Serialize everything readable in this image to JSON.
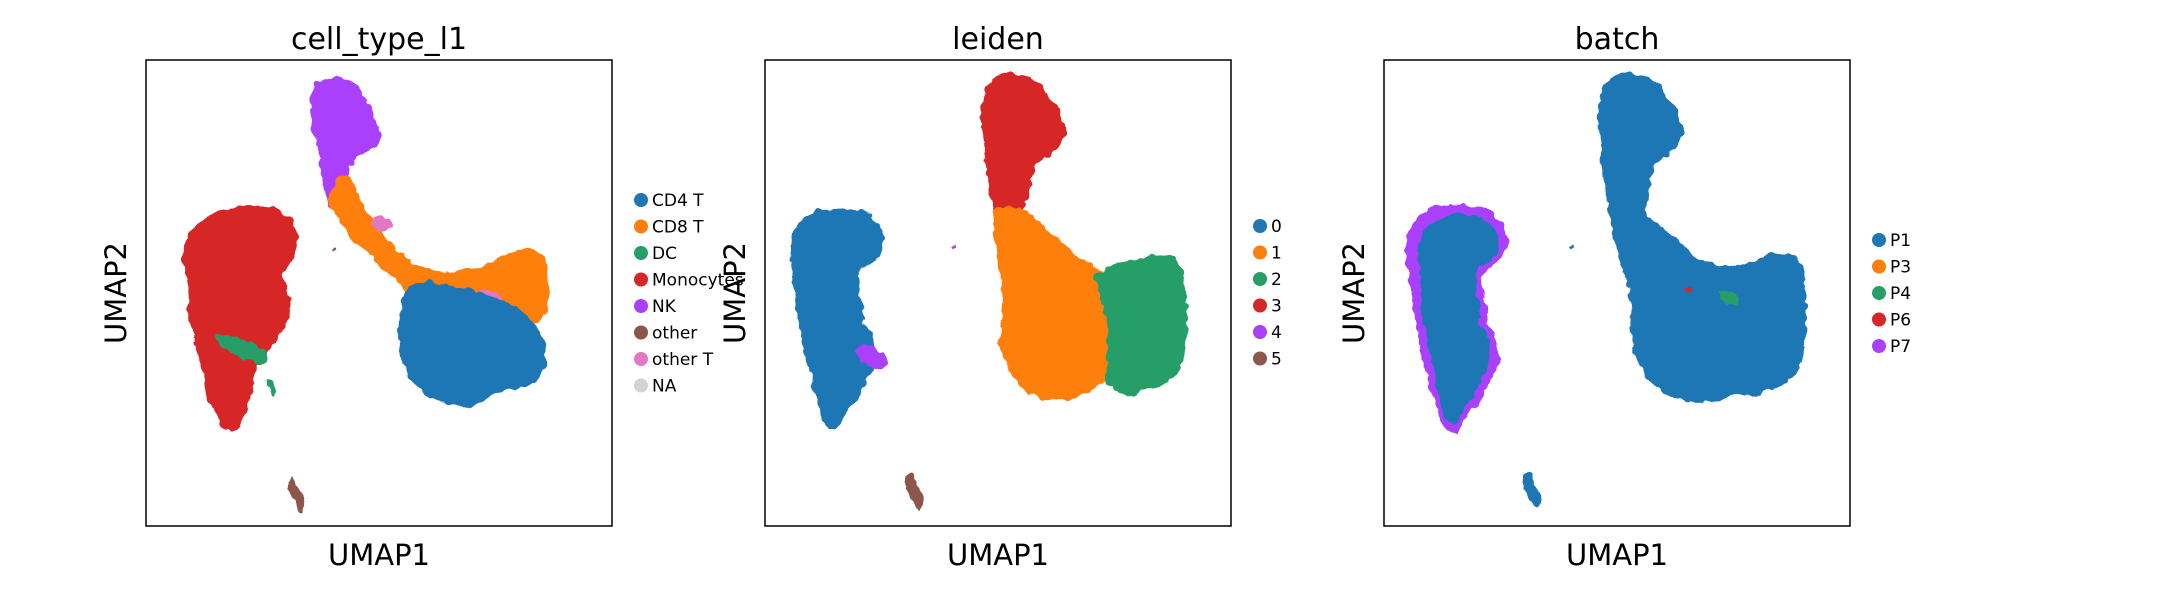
{
  "chart_data": [
    {
      "type": "scatter",
      "title": "cell_type_l1",
      "xlabel": "UMAP1",
      "ylabel": "UMAP2",
      "grid": false,
      "legend": {
        "placement": "right",
        "entries": [
          {
            "label": "CD4 T",
            "color": "#1f77b4"
          },
          {
            "label": "CD8 T",
            "color": "#ff7f0e"
          },
          {
            "label": "DC",
            "color": "#279e68"
          },
          {
            "label": "Monocytes",
            "color": "#d62728"
          },
          {
            "label": "NK",
            "color": "#aa40fc"
          },
          {
            "label": "other",
            "color": "#8c564b"
          },
          {
            "label": "other T",
            "color": "#e377c2"
          },
          {
            "label": "NA",
            "color": "#d3d3d3"
          }
        ]
      }
    },
    {
      "type": "scatter",
      "title": "leiden",
      "xlabel": "UMAP1",
      "ylabel": "UMAP2",
      "grid": false,
      "legend": {
        "placement": "right",
        "entries": [
          {
            "label": "0",
            "color": "#1f77b4"
          },
          {
            "label": "1",
            "color": "#ff7f0e"
          },
          {
            "label": "2",
            "color": "#279e68"
          },
          {
            "label": "3",
            "color": "#d62728"
          },
          {
            "label": "4",
            "color": "#aa40fc"
          },
          {
            "label": "5",
            "color": "#8c564b"
          }
        ]
      }
    },
    {
      "type": "scatter",
      "title": "batch",
      "xlabel": "UMAP1",
      "ylabel": "UMAP2",
      "grid": false,
      "legend": {
        "placement": "right",
        "entries": [
          {
            "label": "P1",
            "color": "#1f77b4"
          },
          {
            "label": "P3",
            "color": "#ff7f0e"
          },
          {
            "label": "P4",
            "color": "#279e68"
          },
          {
            "label": "P6",
            "color": "#d62728"
          },
          {
            "label": "P7",
            "color": "#aa40fc"
          }
        ]
      }
    }
  ]
}
